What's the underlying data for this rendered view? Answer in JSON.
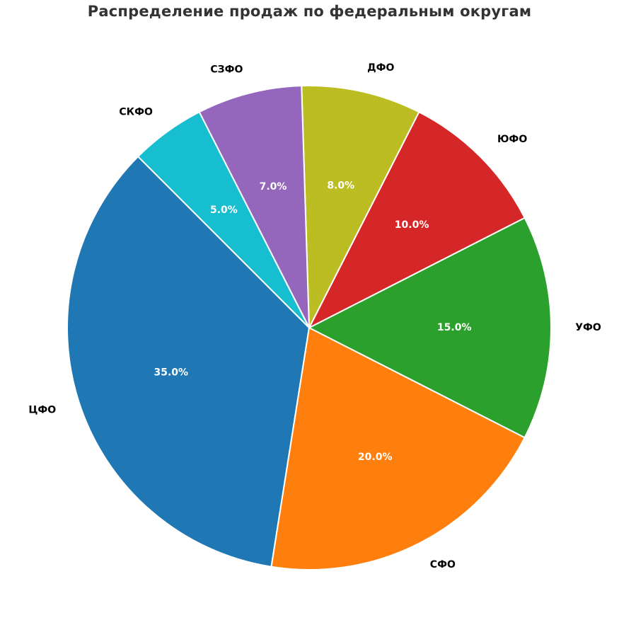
{
  "chart_data": {
    "type": "pie",
    "title": "Распределение продаж по федеральным округам",
    "slices": [
      {
        "label": "ЦФО",
        "value": 35.0,
        "pct_text": "35.0%",
        "color": "#1f77b4"
      },
      {
        "label": "СФО",
        "value": 20.0,
        "pct_text": "20.0%",
        "color": "#ff7f0e"
      },
      {
        "label": "УФО",
        "value": 15.0,
        "pct_text": "15.0%",
        "color": "#2ca02c"
      },
      {
        "label": "ЮФО",
        "value": 10.0,
        "pct_text": "10.0%",
        "color": "#d62728"
      },
      {
        "label": "ДФО",
        "value": 8.0,
        "pct_text": "8.0%",
        "color": "#bcbd22"
      },
      {
        "label": "СЗФО",
        "value": 7.0,
        "pct_text": "7.0%",
        "color": "#9467bd"
      },
      {
        "label": "СКФО",
        "value": 5.0,
        "pct_text": "5.0%",
        "color": "#17becf"
      }
    ],
    "legend": "none"
  }
}
